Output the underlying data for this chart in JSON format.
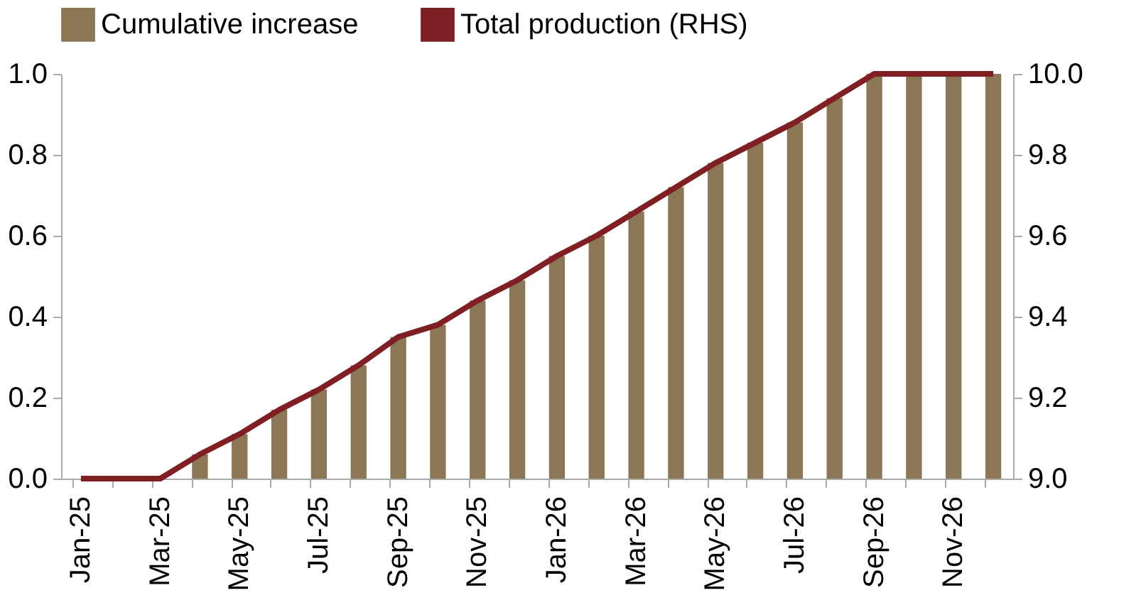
{
  "chart_data": {
    "type": "bar",
    "categories": [
      "Jan-25",
      null,
      "Mar-25",
      null,
      "May-25",
      null,
      "Jul-25",
      null,
      "Sep-25",
      null,
      "Nov-25",
      null,
      "Jan-26",
      null,
      "Mar-26",
      null,
      "May-26",
      null,
      "Jul-26",
      null,
      "Sep-26",
      null,
      "Nov-26",
      null
    ],
    "series": [
      {
        "name": "Cumulative increase",
        "color": "#8b7755",
        "values": [
          0,
          0,
          0,
          0.06,
          0.11,
          0.17,
          0.22,
          0.28,
          0.35,
          0.38,
          0.44,
          0.49,
          0.55,
          0.6,
          0.66,
          0.72,
          0.78,
          0.83,
          0.88,
          0.94,
          1.0,
          1.0,
          1.0,
          1.0
        ]
      },
      {
        "name": "Total production (RHS)",
        "type": "line",
        "axis": "y2",
        "color": "#7f1f24",
        "values": [
          9.0,
          9.0,
          9.0,
          9.06,
          9.11,
          9.17,
          9.22,
          9.28,
          9.35,
          9.38,
          9.44,
          9.49,
          9.55,
          9.6,
          9.66,
          9.72,
          9.78,
          9.83,
          9.88,
          9.94,
          10.0,
          10.0,
          10.0,
          10.0
        ]
      }
    ],
    "ylim": [
      0,
      1.0
    ],
    "yticks": [
      {
        "value": 0,
        "label": "0.0"
      },
      {
        "value": 0.2,
        "label": "0.2"
      },
      {
        "value": 0.4,
        "label": "0.4"
      },
      {
        "value": 0.6,
        "label": "0.6"
      },
      {
        "value": 0.8,
        "label": "0.8"
      },
      {
        "value": 1.0,
        "label": "1.0"
      }
    ],
    "y2lim": [
      9.0,
      10.0
    ],
    "y2ticks": [
      {
        "value": 9.0,
        "label": "9.0"
      },
      {
        "value": 9.2,
        "label": "9.2"
      },
      {
        "value": 9.4,
        "label": "9.4"
      },
      {
        "value": 9.6,
        "label": "9.6"
      },
      {
        "value": 9.8,
        "label": "9.8"
      },
      {
        "value": 10.0,
        "label": "10.0"
      }
    ],
    "grid": false,
    "legend": "top"
  }
}
